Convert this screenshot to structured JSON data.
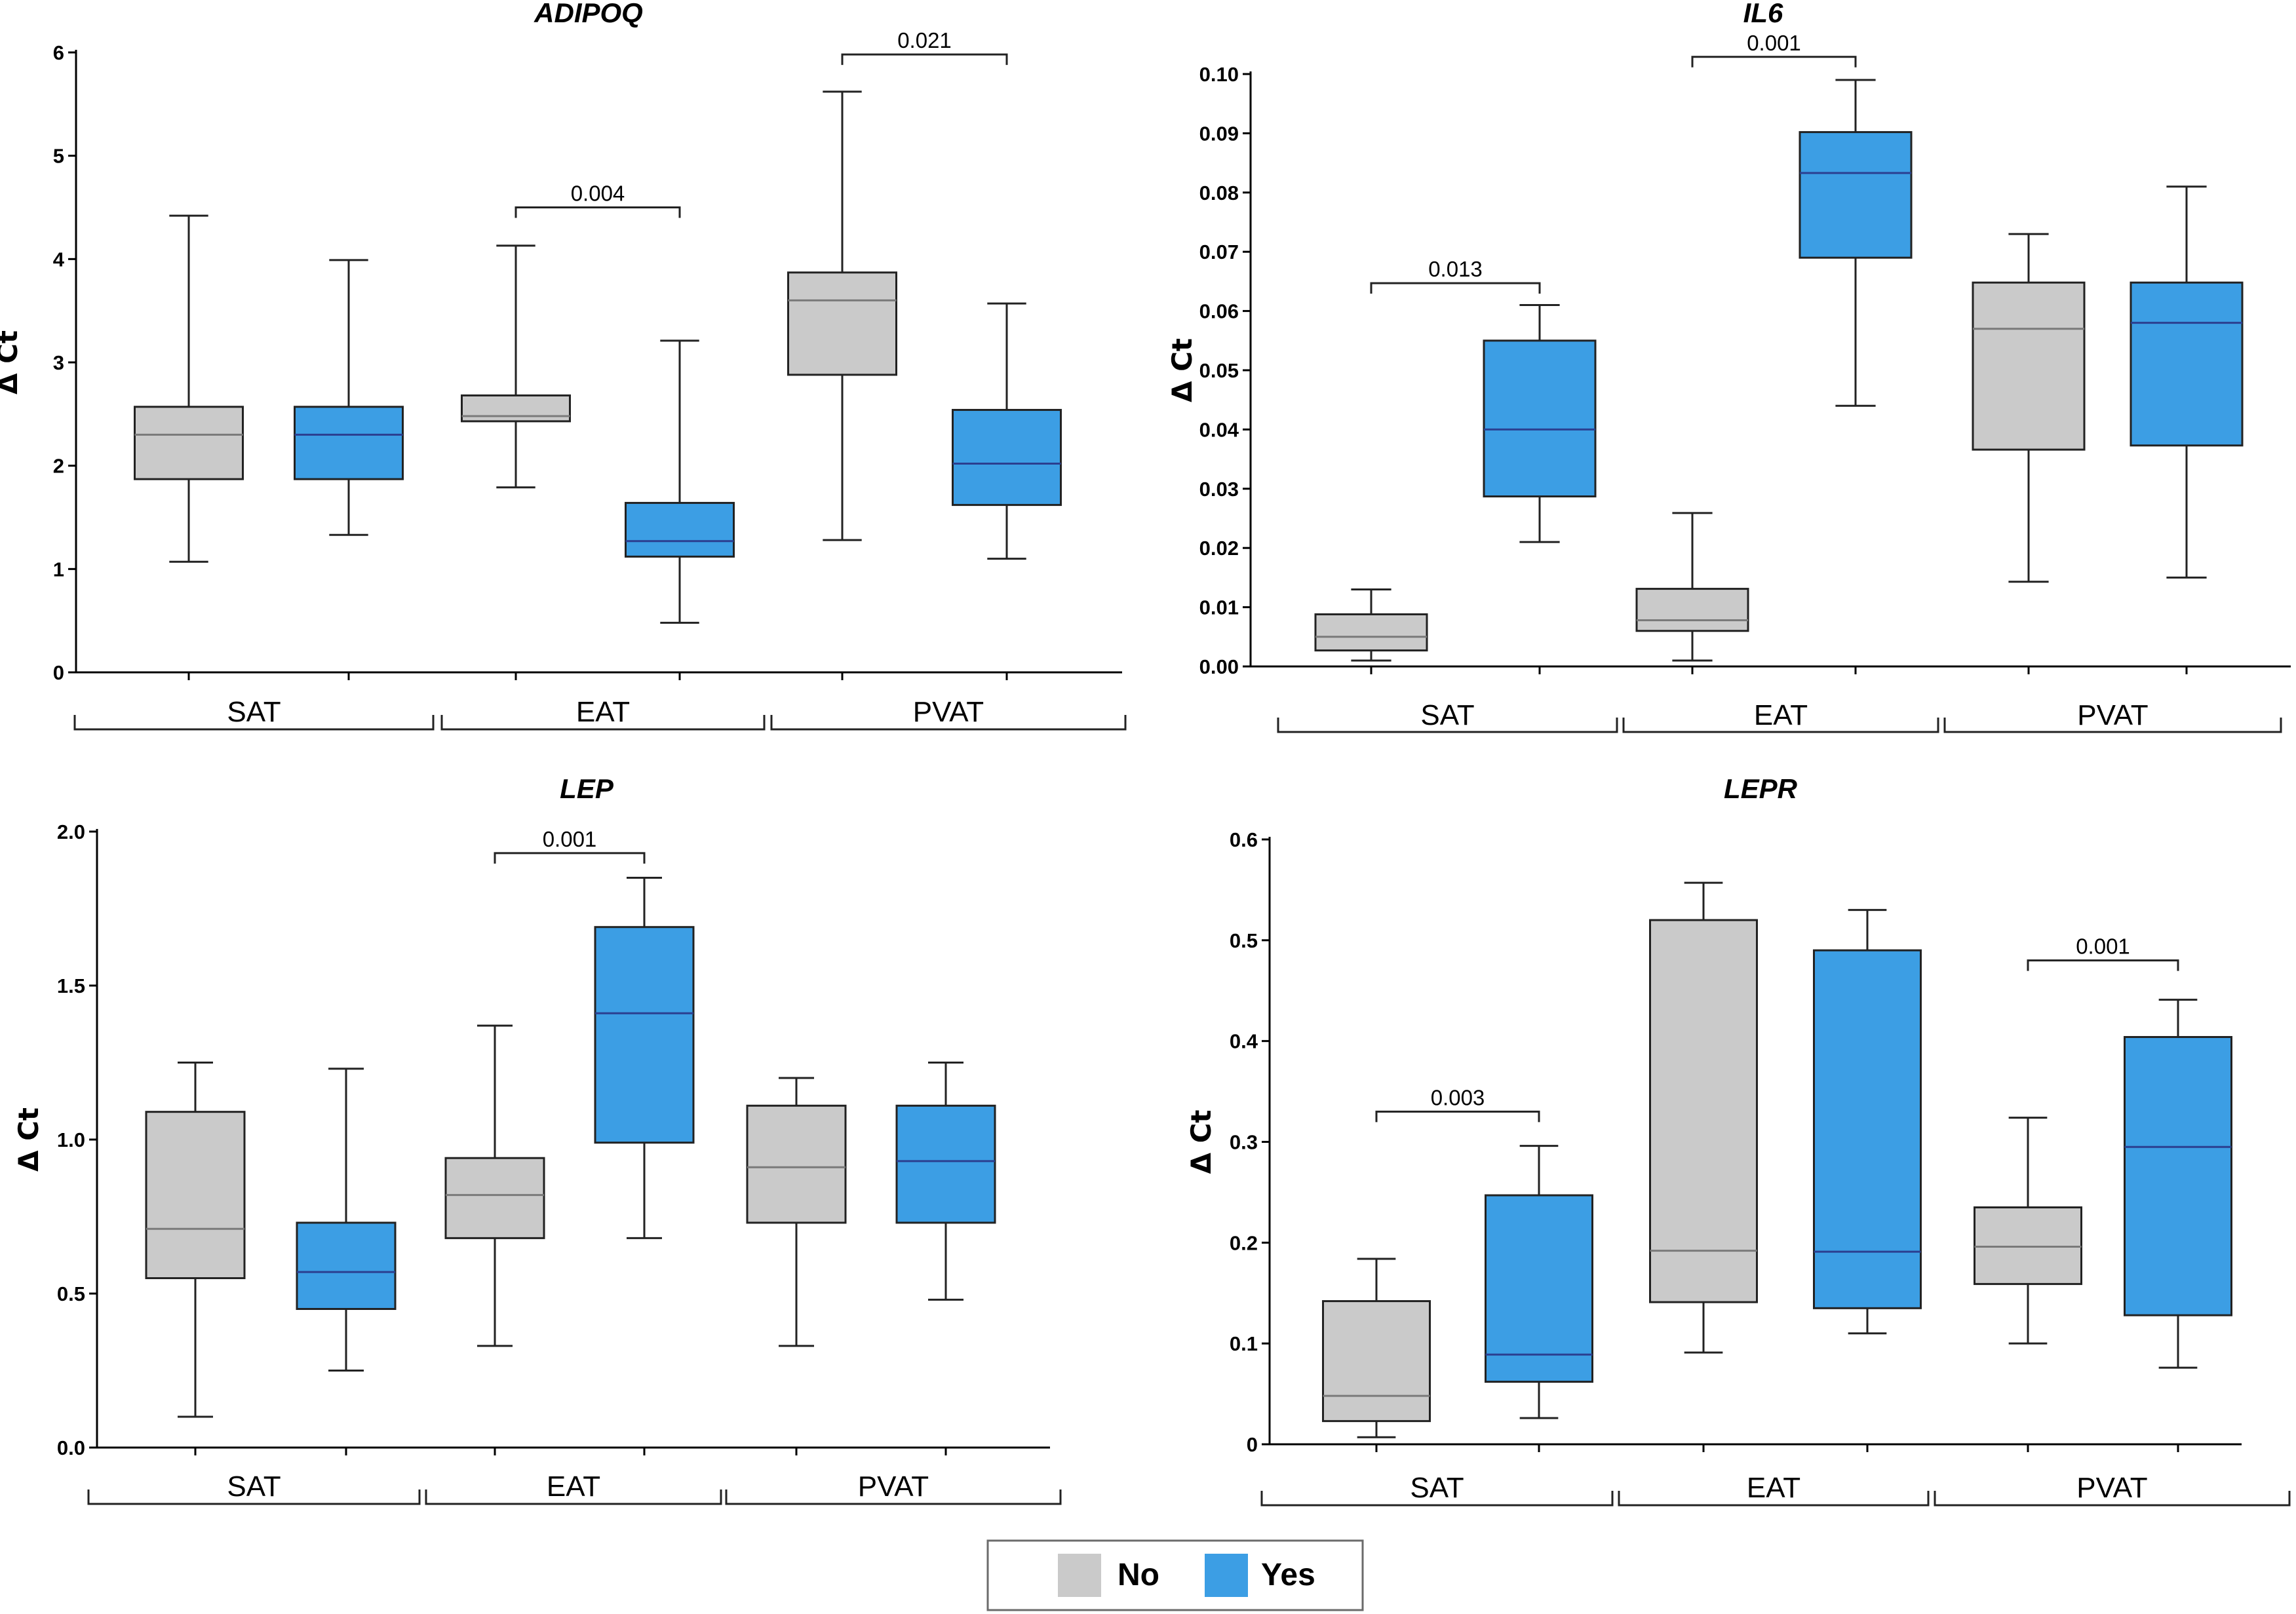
{
  "colors": {
    "no": "#cacaca",
    "yes": "#3c9ee4",
    "median_no": "#7a7a7a",
    "median_yes": "#2b3f90"
  },
  "legend": {
    "items": [
      {
        "key": "no",
        "label": "No"
      },
      {
        "key": "yes",
        "label": "Yes"
      }
    ]
  },
  "chart_data": [
    {
      "type": "boxplot",
      "title": "ADIPOQ",
      "ylabel": "Δ Ct",
      "ylim": [
        0,
        6
      ],
      "yticks": [
        "0",
        "1",
        "2",
        "3",
        "4",
        "5",
        "6"
      ],
      "groups": [
        "SAT",
        "EAT",
        "PVAT"
      ],
      "boxes": [
        {
          "group": "SAT",
          "series": "no",
          "min": 1.07,
          "q1": 1.87,
          "median": 2.3,
          "q3": 2.57,
          "max": 4.42
        },
        {
          "group": "SAT",
          "series": "yes",
          "min": 1.33,
          "q1": 1.87,
          "median": 2.3,
          "q3": 2.57,
          "max": 3.99
        },
        {
          "group": "EAT",
          "series": "no",
          "min": 1.79,
          "q1": 2.43,
          "median": 2.48,
          "q3": 2.68,
          "max": 4.13
        },
        {
          "group": "EAT",
          "series": "yes",
          "min": 0.48,
          "q1": 1.12,
          "median": 1.27,
          "q3": 1.64,
          "max": 3.21
        },
        {
          "group": "PVAT",
          "series": "no",
          "min": 1.28,
          "q1": 2.88,
          "median": 3.6,
          "q3": 3.87,
          "max": 5.62
        },
        {
          "group": "PVAT",
          "series": "yes",
          "min": 1.1,
          "q1": 1.62,
          "median": 2.02,
          "q3": 2.54,
          "max": 3.57
        }
      ],
      "annotations": [
        {
          "label": "0.004",
          "from": 2,
          "to": 3,
          "y": 4.5
        },
        {
          "label": "0.021",
          "from": 4,
          "to": 5,
          "y": 5.98
        }
      ]
    },
    {
      "type": "boxplot",
      "title": "IL6",
      "ylabel": "Δ Ct",
      "ylim": [
        0,
        0.1
      ],
      "yticks": [
        "0.00",
        "0.01",
        "0.02",
        "0.03",
        "0.04",
        "0.05",
        "0.06",
        "0.07",
        "0.08",
        "0.09",
        "0.10"
      ],
      "groups": [
        "SAT",
        "EAT",
        "PVAT"
      ],
      "boxes": [
        {
          "group": "SAT",
          "series": "no",
          "min": 0.001,
          "q1": 0.0027,
          "median": 0.005,
          "q3": 0.0088,
          "max": 0.013
        },
        {
          "group": "SAT",
          "series": "yes",
          "min": 0.021,
          "q1": 0.0287,
          "median": 0.04,
          "q3": 0.055,
          "max": 0.061
        },
        {
          "group": "EAT",
          "series": "no",
          "min": 0.001,
          "q1": 0.006,
          "median": 0.0078,
          "q3": 0.0131,
          "max": 0.0259
        },
        {
          "group": "EAT",
          "series": "yes",
          "min": 0.044,
          "q1": 0.069,
          "median": 0.0833,
          "q3": 0.0902,
          "max": 0.099
        },
        {
          "group": "PVAT",
          "series": "no",
          "min": 0.0143,
          "q1": 0.0366,
          "median": 0.057,
          "q3": 0.0648,
          "max": 0.073
        },
        {
          "group": "PVAT",
          "series": "yes",
          "min": 0.015,
          "q1": 0.0373,
          "median": 0.058,
          "q3": 0.0648,
          "max": 0.081
        }
      ],
      "annotations": [
        {
          "label": "0.013",
          "from": 0,
          "to": 1,
          "y": 0.0647
        },
        {
          "label": "0.001",
          "from": 2,
          "to": 3,
          "y": 0.1029
        }
      ]
    },
    {
      "type": "boxplot",
      "title": "LEP",
      "ylabel": "Δ Ct",
      "ylim": [
        0,
        2.0
      ],
      "yticks": [
        "0.0",
        "0.5",
        "1.0",
        "1.5",
        "2.0"
      ],
      "groups": [
        "SAT",
        "EAT",
        "PVAT"
      ],
      "boxes": [
        {
          "group": "SAT",
          "series": "no",
          "min": 0.1,
          "q1": 0.55,
          "median": 0.71,
          "q3": 1.09,
          "max": 1.25
        },
        {
          "group": "SAT",
          "series": "yes",
          "min": 0.25,
          "q1": 0.45,
          "median": 0.57,
          "q3": 0.73,
          "max": 1.23
        },
        {
          "group": "EAT",
          "series": "no",
          "min": 0.33,
          "q1": 0.68,
          "median": 0.82,
          "q3": 0.94,
          "max": 1.37
        },
        {
          "group": "EAT",
          "series": "yes",
          "min": 0.68,
          "q1": 0.99,
          "median": 1.41,
          "q3": 1.69,
          "max": 1.85
        },
        {
          "group": "PVAT",
          "series": "no",
          "min": 0.33,
          "q1": 0.73,
          "median": 0.91,
          "q3": 1.11,
          "max": 1.2
        },
        {
          "group": "PVAT",
          "series": "yes",
          "min": 0.48,
          "q1": 0.73,
          "median": 0.93,
          "q3": 1.11,
          "max": 1.25
        }
      ],
      "annotations": [
        {
          "label": "0.001",
          "from": 2,
          "to": 3,
          "y": 1.93
        }
      ]
    },
    {
      "type": "boxplot",
      "title": "LEPR",
      "ylabel": "Δ Ct",
      "ylim": [
        0,
        0.6
      ],
      "yticks": [
        "0",
        "0.1",
        "0.2",
        "0.3",
        "0.4",
        "0.5",
        "0.6"
      ],
      "groups": [
        "SAT",
        "EAT",
        "PVAT"
      ],
      "boxes": [
        {
          "group": "SAT",
          "series": "no",
          "min": 0.007,
          "q1": 0.023,
          "median": 0.048,
          "q3": 0.142,
          "max": 0.184
        },
        {
          "group": "SAT",
          "series": "yes",
          "min": 0.026,
          "q1": 0.062,
          "median": 0.089,
          "q3": 0.247,
          "max": 0.296
        },
        {
          "group": "EAT",
          "series": "no",
          "min": 0.091,
          "q1": 0.141,
          "median": 0.192,
          "q3": 0.52,
          "max": 0.557
        },
        {
          "group": "EAT",
          "series": "yes",
          "min": 0.11,
          "q1": 0.135,
          "median": 0.191,
          "q3": 0.49,
          "max": 0.53
        },
        {
          "group": "PVAT",
          "series": "no",
          "min": 0.1,
          "q1": 0.159,
          "median": 0.196,
          "q3": 0.235,
          "max": 0.324
        },
        {
          "group": "PVAT",
          "series": "yes",
          "min": 0.076,
          "q1": 0.128,
          "median": 0.295,
          "q3": 0.404,
          "max": 0.441
        }
      ],
      "annotations": [
        {
          "label": "0.003",
          "from": 0,
          "to": 1,
          "y": 0.33
        },
        {
          "label": "0.001",
          "from": 4,
          "to": 5,
          "y": 0.48
        }
      ]
    }
  ]
}
